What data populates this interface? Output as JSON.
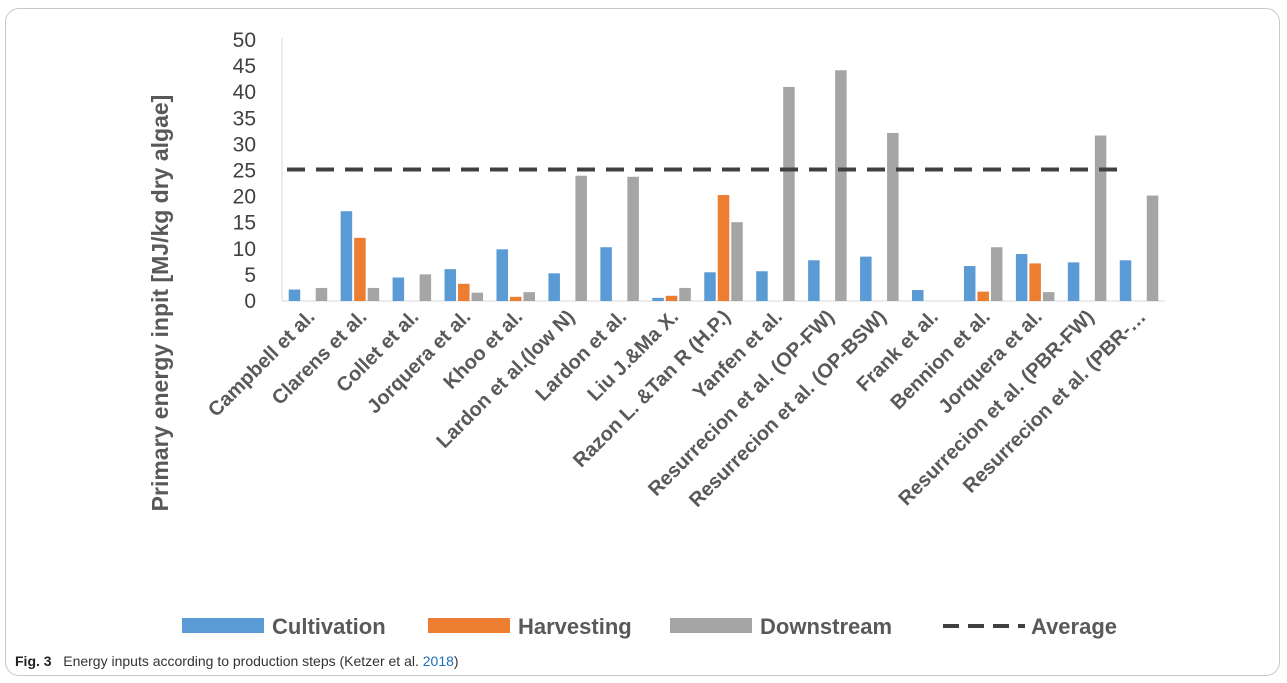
{
  "chart_data": {
    "type": "bar",
    "ylabel": "Primary energy inpit [MJ/kg dry algae]",
    "xlabel": "",
    "ylim": [
      0,
      50
    ],
    "yticks": [
      0,
      5,
      10,
      15,
      20,
      25,
      30,
      35,
      40,
      45,
      50
    ],
    "grid": false,
    "legend_position": "bottom",
    "categories": [
      "Campbell et al.",
      "Clarens et al.",
      "Collet et al.",
      "Jorquera et al.",
      "Khoo et al.",
      "Lardon et al.(low N)",
      "Lardon et al.",
      "Liu J.&Ma X.",
      "Razon L. &Tan R (H.P.)",
      "Yanfen et al.",
      "Resurrecion et al. (OP-FW)",
      "Resurrecion et al. (OP-BSW)",
      "Frank et al.",
      "Bennion et al.",
      "Jorquera et al.",
      "Resurrecion et al. (PBR-FW)",
      "Resurrecion et al. (PBR-…"
    ],
    "series": [
      {
        "name": "Cultivation",
        "color": "#5b9bd5",
        "values": [
          2.2,
          17.2,
          4.5,
          6.1,
          9.9,
          5.3,
          10.3,
          0.6,
          5.5,
          5.7,
          7.8,
          8.5,
          2.1,
          6.7,
          9.0,
          7.4,
          7.8
        ]
      },
      {
        "name": "Harvesting",
        "color": "#ed7d31",
        "values": [
          0,
          12.1,
          0,
          3.3,
          0.8,
          0,
          0,
          1.0,
          20.3,
          0,
          0,
          0,
          0,
          1.8,
          7.2,
          0,
          0
        ]
      },
      {
        "name": "Downstream",
        "color": "#a5a5a5",
        "values": [
          2.5,
          2.5,
          5.1,
          1.6,
          1.7,
          24.0,
          23.8,
          2.5,
          15.1,
          41.0,
          44.2,
          32.2,
          0,
          10.3,
          1.7,
          31.7,
          20.2
        ]
      }
    ],
    "average": {
      "name": "Average",
      "value": 25.2,
      "color": "#404040"
    }
  },
  "caption": {
    "fig_label": "Fig. 3",
    "text_before": "Energy inputs according to production steps (Ketzer et al. ",
    "cite": "2018",
    "text_after": ")"
  }
}
